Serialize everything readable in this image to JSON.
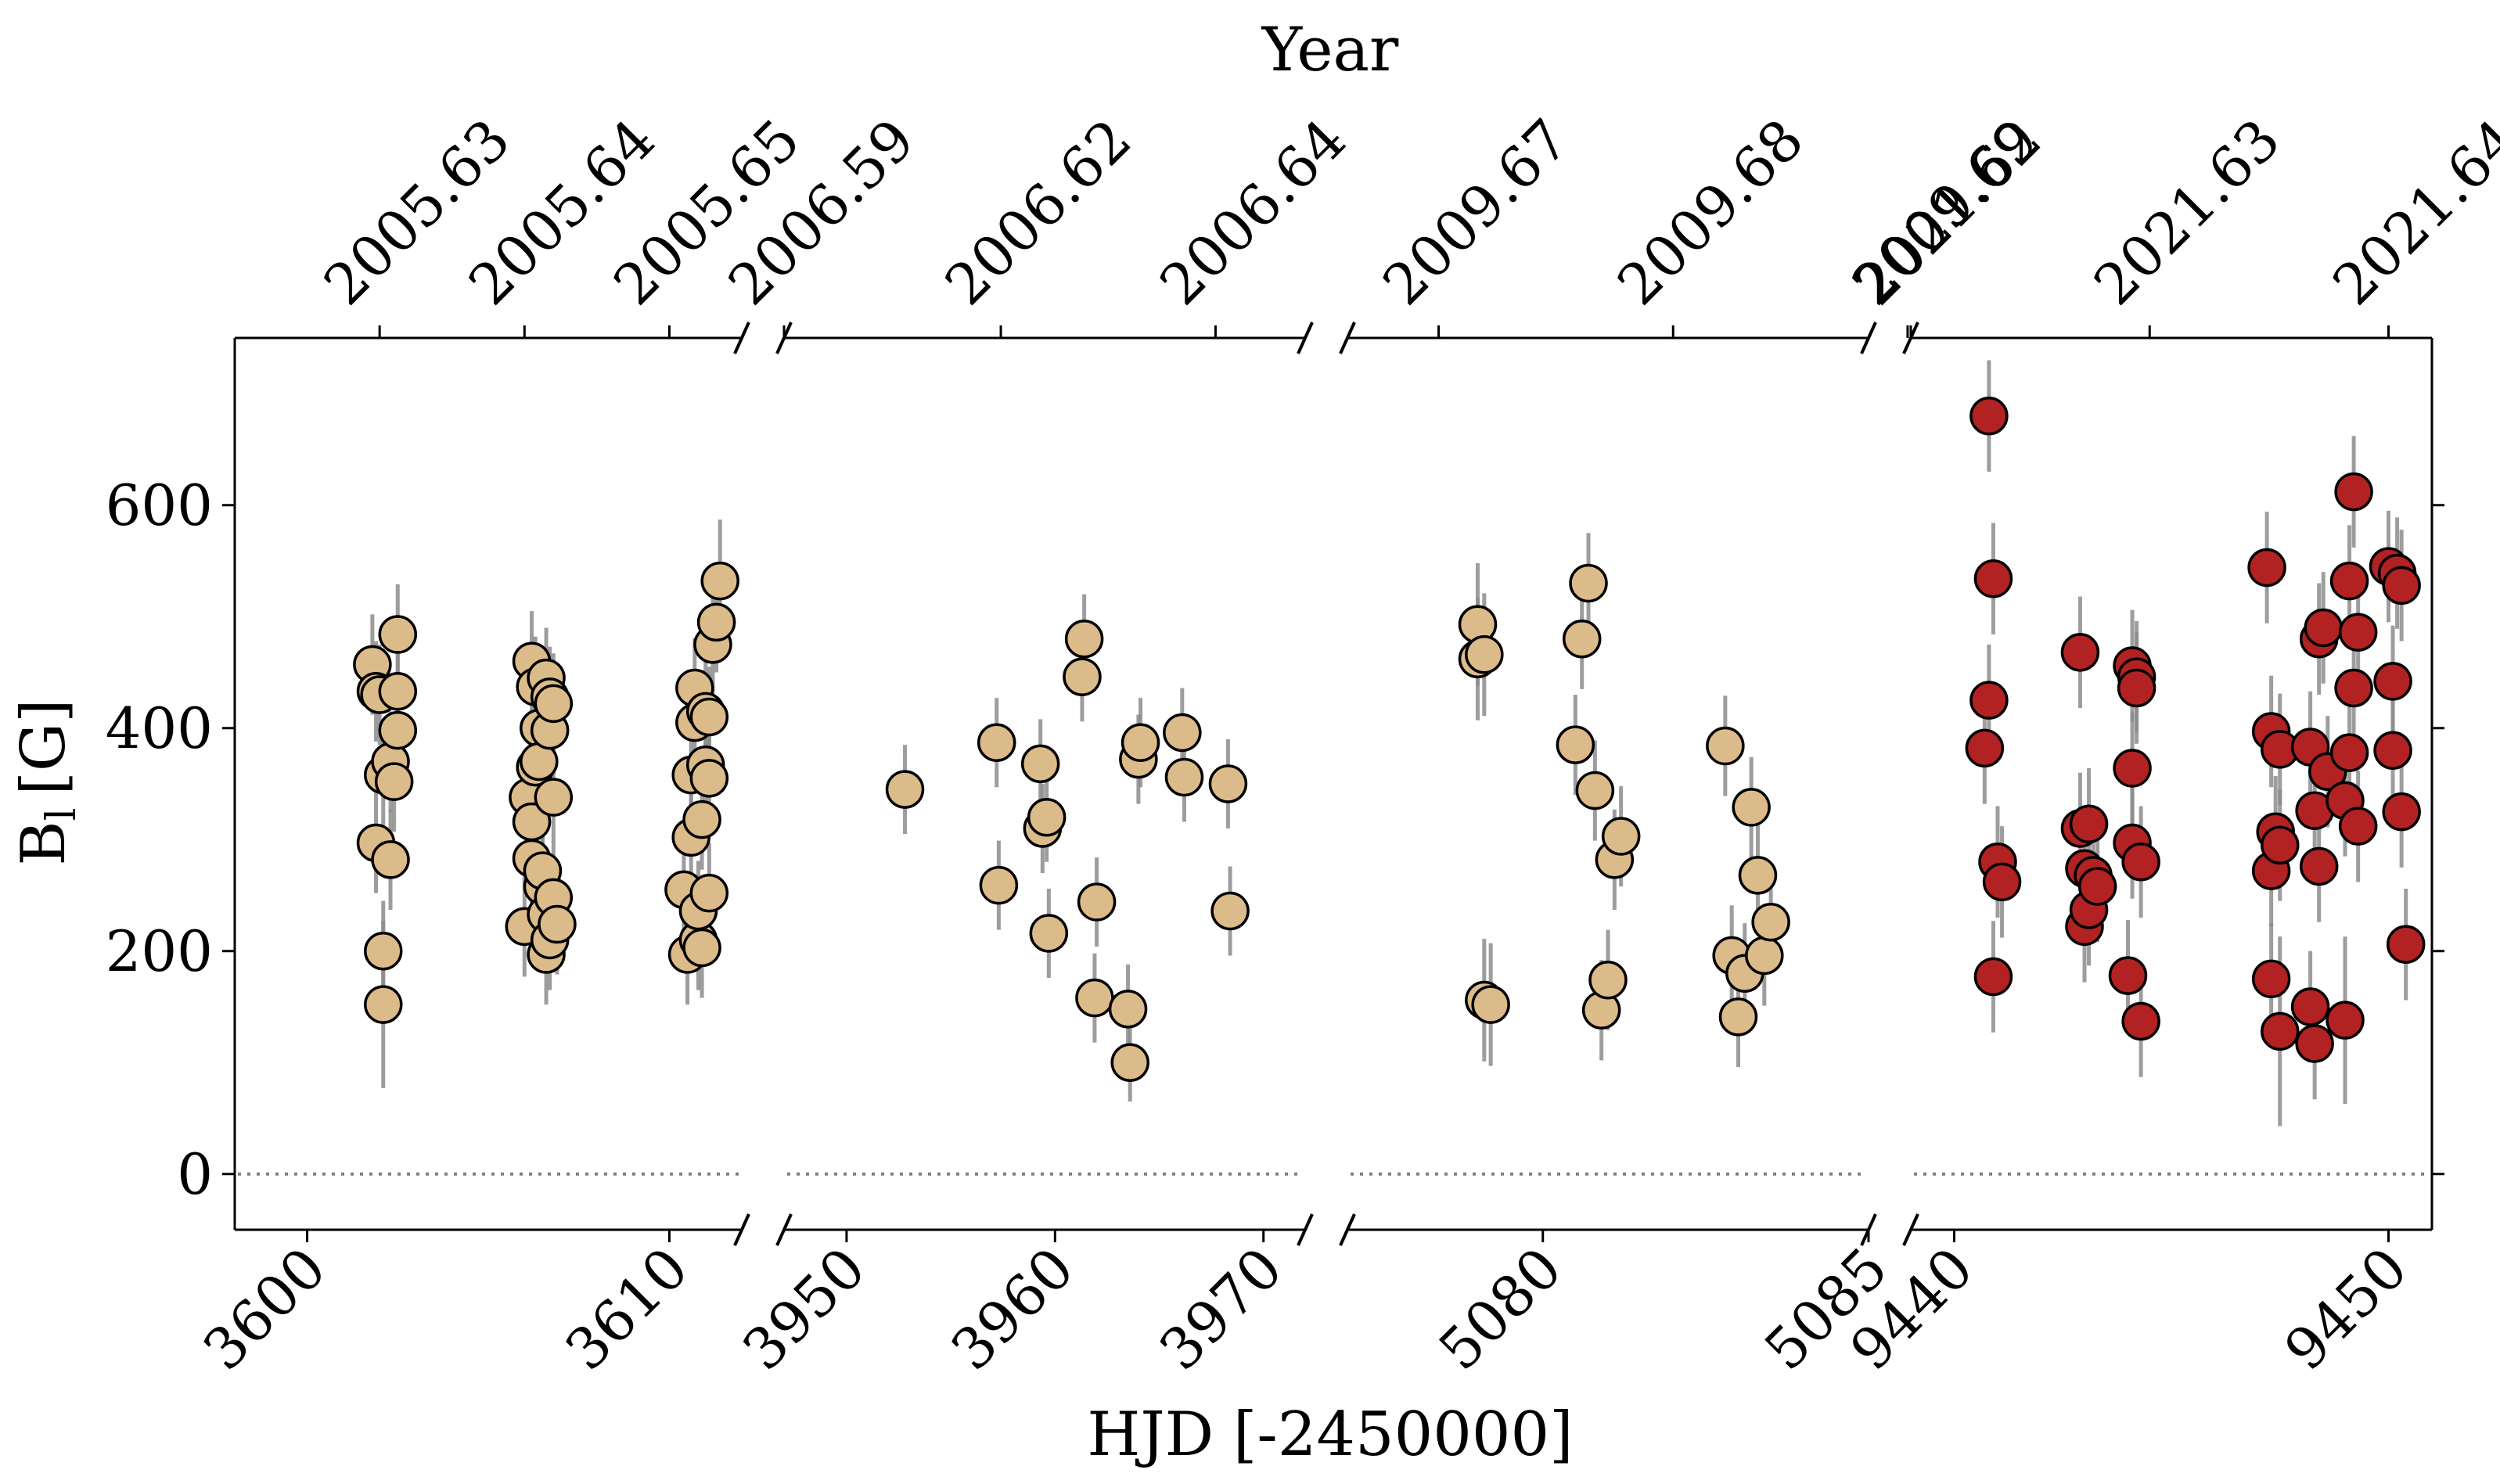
{
  "chart_data": {
    "type": "scatter",
    "title": "",
    "xlabel": "HJD [-2450000]",
    "ylabel": "B",
    "ylabel_sub": "l",
    "ylabel_unit": "[G]",
    "top_label": "Year",
    "ylim": [
      -50,
      750
    ],
    "yticks": [
      0,
      200,
      400,
      600
    ],
    "zero_line": 0,
    "colors": {
      "early": "#dcbb8a",
      "late": "#b22222",
      "errorbar": "#8c8c8c",
      "zero_line": "#808080"
    },
    "panels": [
      {
        "name": "panel-2005",
        "xlim": [
          3598,
          3612
        ],
        "xticks": [
          "3600",
          "3610"
        ],
        "top_ticks": [
          "2005.63",
          "2005.64",
          "2005.65"
        ],
        "top_tick_positions": [
          3602,
          3606,
          3610
        ],
        "color": "#dcbb8a",
        "points": [
          [
            3601.8,
            457,
            45
          ],
          [
            3601.9,
            433,
            45
          ],
          [
            3601.9,
            297,
            45
          ],
          [
            3602.0,
            430,
            45
          ],
          [
            3602.1,
            358,
            45
          ],
          [
            3602.1,
            200,
            45
          ],
          [
            3602.1,
            152,
            75
          ],
          [
            3602.3,
            370,
            45
          ],
          [
            3602.3,
            282,
            45
          ],
          [
            3602.4,
            352,
            45
          ],
          [
            3602.5,
            484,
            45
          ],
          [
            3602.5,
            433,
            45
          ],
          [
            3602.5,
            398,
            45
          ],
          [
            3606.0,
            222,
            45
          ],
          [
            3606.1,
            338,
            45
          ],
          [
            3606.2,
            460,
            45
          ],
          [
            3606.2,
            316,
            45
          ],
          [
            3606.2,
            283,
            45
          ],
          [
            3606.3,
            365,
            45
          ],
          [
            3606.3,
            437,
            45
          ],
          [
            3606.4,
            400,
            45
          ],
          [
            3606.4,
            370,
            45
          ],
          [
            3606.5,
            258,
            45
          ],
          [
            3606.5,
            272,
            45
          ],
          [
            3606.6,
            233,
            45
          ],
          [
            3606.6,
            197,
            45
          ],
          [
            3606.6,
            445,
            45
          ],
          [
            3606.7,
            428,
            45
          ],
          [
            3606.7,
            398,
            45
          ],
          [
            3606.7,
            210,
            45
          ],
          [
            3606.8,
            422,
            45
          ],
          [
            3606.8,
            248,
            45
          ],
          [
            3606.8,
            338,
            45
          ],
          [
            3606.9,
            224,
            45
          ],
          [
            3610.4,
            255,
            45
          ],
          [
            3610.5,
            197,
            45
          ],
          [
            3610.6,
            302,
            45
          ],
          [
            3610.6,
            358,
            45
          ],
          [
            3610.7,
            436,
            45
          ],
          [
            3610.7,
            405,
            45
          ],
          [
            3610.8,
            210,
            45
          ],
          [
            3610.8,
            236,
            45
          ],
          [
            3610.9,
            203,
            45
          ],
          [
            3610.9,
            318,
            45
          ],
          [
            3611.0,
            415,
            45
          ],
          [
            3611.0,
            367,
            45
          ],
          [
            3611.1,
            355,
            45
          ],
          [
            3611.1,
            410,
            45
          ],
          [
            3611.1,
            252,
            45
          ],
          [
            3611.2,
            475,
            45
          ],
          [
            3611.3,
            495,
            45
          ],
          [
            3611.4,
            532,
            55
          ]
        ]
      },
      {
        "name": "panel-2006",
        "xlim": [
          3947,
          3972
        ],
        "xticks": [
          "3950",
          "3960",
          "3970"
        ],
        "top_ticks": [
          "2006.59",
          "2006.62",
          "2006.64"
        ],
        "top_tick_positions": [
          3947,
          3957.4,
          3967.7
        ],
        "color": "#dcbb8a",
        "points": [
          [
            3952.8,
            345,
            40
          ],
          [
            3957.2,
            387,
            40
          ],
          [
            3957.3,
            259,
            40
          ],
          [
            3959.3,
            368,
            40
          ],
          [
            3959.4,
            310,
            40
          ],
          [
            3959.6,
            320,
            40
          ],
          [
            3959.7,
            216,
            40
          ],
          [
            3961.3,
            446,
            40
          ],
          [
            3961.4,
            480,
            40
          ],
          [
            3961.9,
            158,
            40
          ],
          [
            3962.0,
            244,
            40
          ],
          [
            3963.5,
            148,
            40
          ],
          [
            3963.6,
            100,
            35
          ],
          [
            3964.0,
            372,
            40
          ],
          [
            3964.1,
            387,
            40
          ],
          [
            3966.1,
            396,
            40
          ],
          [
            3966.2,
            356,
            40
          ],
          [
            3968.3,
            350,
            40
          ],
          [
            3968.4,
            236,
            40
          ]
        ]
      },
      {
        "name": "panel-2009",
        "xlim": [
          5077.0,
          5085.0
        ],
        "xticks": [
          "5080",
          "5085"
        ],
        "top_ticks": [
          "2009.67",
          "2009.68",
          "2009.69"
        ],
        "top_tick_positions": [
          5078.4,
          5082.0,
          5085.6
        ],
        "color": "#dcbb8a",
        "points": [
          [
            5079.0,
            493,
            55
          ],
          [
            5079.0,
            462,
            55
          ],
          [
            5079.1,
            466,
            55
          ],
          [
            5079.1,
            156,
            55
          ],
          [
            5079.2,
            152,
            55
          ],
          [
            5080.5,
            385,
            45
          ],
          [
            5080.6,
            480,
            45
          ],
          [
            5080.7,
            530,
            45
          ],
          [
            5080.8,
            344,
            45
          ],
          [
            5080.9,
            147,
            45
          ],
          [
            5081.0,
            174,
            45
          ],
          [
            5081.1,
            282,
            45
          ],
          [
            5081.2,
            303,
            45
          ],
          [
            5082.8,
            384,
            45
          ],
          [
            5082.9,
            196,
            45
          ],
          [
            5083.0,
            141,
            45
          ],
          [
            5083.1,
            180,
            45
          ],
          [
            5083.2,
            329,
            45
          ],
          [
            5083.3,
            268,
            45
          ],
          [
            5083.4,
            196,
            45
          ],
          [
            5083.5,
            226,
            45
          ]
        ]
      },
      {
        "name": "panel-2021",
        "xlim": [
          9439.0,
          9451.0
        ],
        "xticks": [
          "9440",
          "9450"
        ],
        "top_ticks": [
          "2021.62",
          "2021.63",
          "2021.64"
        ],
        "top_tick_positions": [
          9439.0,
          9444.5,
          9450.0
        ],
        "color": "#b22222",
        "points": [
          [
            9440.7,
            382,
            50
          ],
          [
            9440.8,
            680,
            50
          ],
          [
            9440.8,
            425,
            50
          ],
          [
            9440.9,
            534,
            50
          ],
          [
            9440.9,
            177,
            50
          ],
          [
            9441.0,
            280,
            50
          ],
          [
            9441.1,
            262,
            50
          ],
          [
            9442.9,
            468,
            50
          ],
          [
            9442.9,
            310,
            50
          ],
          [
            9443.0,
            222,
            50
          ],
          [
            9443.0,
            274,
            50
          ],
          [
            9443.1,
            237,
            50
          ],
          [
            9443.1,
            314,
            50
          ],
          [
            9443.2,
            268,
            50
          ],
          [
            9443.3,
            258,
            50
          ],
          [
            9444.0,
            178,
            50
          ],
          [
            9444.1,
            297,
            50
          ],
          [
            9444.1,
            364,
            50
          ],
          [
            9444.1,
            456,
            50
          ],
          [
            9444.2,
            446,
            50
          ],
          [
            9444.2,
            436,
            50
          ],
          [
            9444.3,
            280,
            50
          ],
          [
            9444.3,
            137,
            50
          ],
          [
            9447.2,
            544,
            50
          ],
          [
            9447.3,
            397,
            50
          ],
          [
            9447.3,
            272,
            50
          ],
          [
            9447.3,
            175,
            50
          ],
          [
            9447.4,
            307,
            50
          ],
          [
            9447.5,
            381,
            50
          ],
          [
            9447.5,
            128,
            85
          ],
          [
            9447.5,
            295,
            50
          ],
          [
            9448.2,
            383,
            50
          ],
          [
            9448.2,
            150,
            50
          ],
          [
            9448.3,
            117,
            50
          ],
          [
            9448.3,
            326,
            50
          ],
          [
            9448.4,
            480,
            50
          ],
          [
            9448.4,
            276,
            50
          ],
          [
            9448.5,
            490,
            50
          ],
          [
            9448.6,
            361,
            50
          ],
          [
            9449.0,
            138,
            75
          ],
          [
            9449.0,
            335,
            50
          ],
          [
            9449.1,
            532,
            50
          ],
          [
            9449.1,
            378,
            50
          ],
          [
            9449.2,
            612,
            50
          ],
          [
            9449.2,
            436,
            50
          ],
          [
            9449.3,
            312,
            50
          ],
          [
            9449.3,
            486,
            50
          ],
          [
            9450.0,
            545,
            50
          ],
          [
            9450.1,
            380,
            50
          ],
          [
            9450.1,
            442,
            50
          ],
          [
            9450.2,
            539,
            50
          ],
          [
            9450.3,
            528,
            50
          ],
          [
            9450.3,
            325,
            50
          ],
          [
            9450.4,
            206,
            50
          ]
        ]
      }
    ]
  }
}
